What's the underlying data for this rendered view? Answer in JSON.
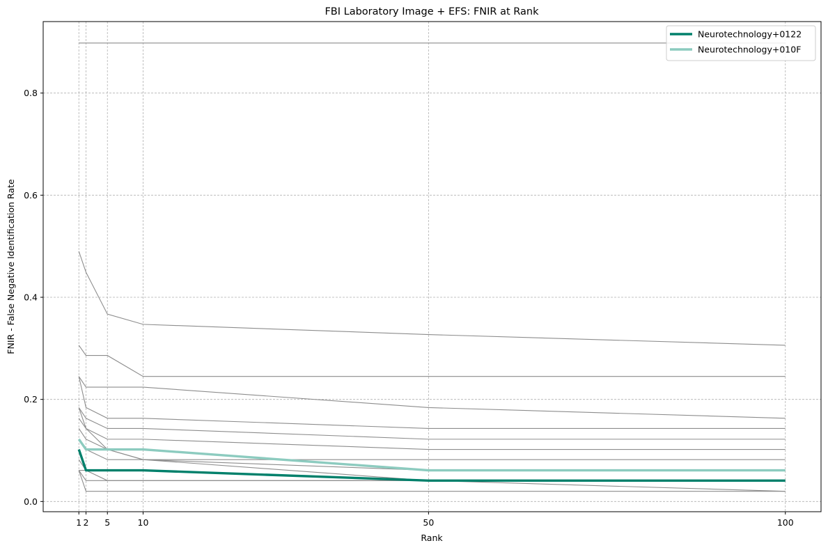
{
  "chart_data": {
    "type": "line",
    "title": "FBI Laboratory Image + EFS: FNIR at Rank",
    "xlabel": "Rank",
    "ylabel": "FNIR - False Negative Identification Rate",
    "x": [
      1,
      2,
      5,
      10,
      50,
      100
    ],
    "xticks": [
      1,
      2,
      5,
      10,
      50,
      100
    ],
    "yticks": [
      0.0,
      0.2,
      0.4,
      0.6,
      0.8
    ],
    "ytick_labels": [
      "0.0",
      "0.2",
      "0.4",
      "0.6",
      "0.8"
    ],
    "xlim": [
      -4,
      105
    ],
    "ylim": [
      -0.02,
      0.94
    ],
    "grid": true,
    "legend_position": "top-right",
    "colors": {
      "background_series": "#8c8c8c",
      "grid": "#b0b0b0"
    },
    "background_series": [
      {
        "values": [
          0.898,
          0.898,
          0.898,
          0.898,
          0.898,
          0.898
        ]
      },
      {
        "values": [
          0.49,
          0.449,
          0.367,
          0.347,
          0.327,
          0.306
        ]
      },
      {
        "values": [
          0.306,
          0.286,
          0.286,
          0.245,
          0.245,
          0.245
        ]
      },
      {
        "values": [
          0.245,
          0.224,
          0.224,
          0.224,
          0.184,
          0.163
        ]
      },
      {
        "values": [
          0.245,
          0.184,
          0.163,
          0.163,
          0.143,
          0.143
        ]
      },
      {
        "values": [
          0.184,
          0.163,
          0.143,
          0.143,
          0.122,
          0.122
        ]
      },
      {
        "values": [
          0.184,
          0.143,
          0.102,
          0.082,
          0.082,
          0.082
        ]
      },
      {
        "values": [
          0.163,
          0.143,
          0.122,
          0.122,
          0.102,
          0.102
        ]
      },
      {
        "values": [
          0.143,
          0.122,
          0.102,
          0.082,
          0.041,
          0.02
        ]
      },
      {
        "values": [
          0.122,
          0.102,
          0.082,
          0.082,
          0.061,
          0.061
        ]
      },
      {
        "values": [
          0.102,
          0.061,
          0.061,
          0.061,
          0.041,
          0.041
        ]
      },
      {
        "values": [
          0.082,
          0.061,
          0.041,
          0.041,
          0.041,
          0.041
        ]
      },
      {
        "values": [
          0.061,
          0.041,
          0.041,
          0.041,
          0.041,
          0.041
        ]
      },
      {
        "values": [
          0.061,
          0.02,
          0.02,
          0.02,
          0.02,
          0.02
        ]
      },
      {
        "values": [
          0.061,
          0.061,
          0.061,
          0.061,
          0.041,
          0.041
        ]
      }
    ],
    "series": [
      {
        "name": "Neurotechnology+0122",
        "color": "#00806b",
        "values": [
          0.102,
          0.061,
          0.061,
          0.061,
          0.041,
          0.041
        ]
      },
      {
        "name": "Neurotechnology+010F",
        "color": "#8ccbbf",
        "values": [
          0.122,
          0.102,
          0.102,
          0.102,
          0.061,
          0.061
        ]
      }
    ]
  }
}
